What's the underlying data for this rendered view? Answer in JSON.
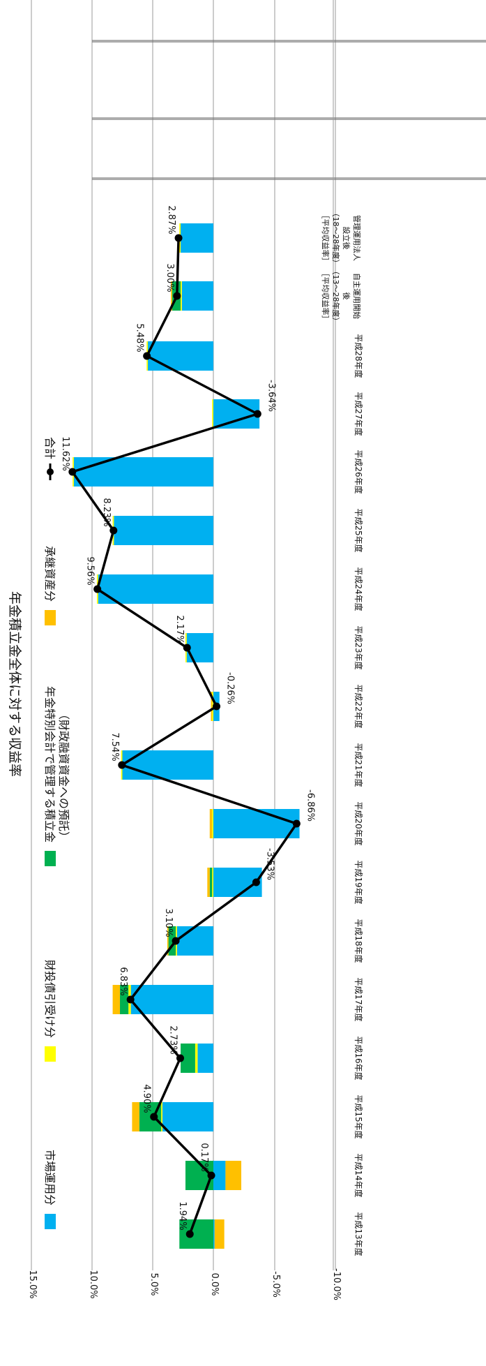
{
  "chart_data": {
    "type": "bar",
    "title": "年金積立金全体に対する収益率",
    "categories": [
      "平成13年度",
      "平成14年度",
      "平成15年度",
      "平成16年度",
      "平成17年度",
      "平成18年度",
      "平成19年度",
      "平成20年度",
      "平成21年度",
      "平成22年度",
      "平成23年度",
      "平成24年度",
      "平成25年度",
      "平成26年度",
      "平成27年度",
      "平成28年度",
      "自主運用開始後（13～28年度）［平均収益率］",
      "管理運用法人設立後（18～28年度）［平均収益率］"
    ],
    "ylim": [
      -10,
      15
    ],
    "yticks": [
      "15.0%",
      "10.0%",
      "5.0%",
      "0.0%",
      "-5.0%",
      "-10.0%"
    ],
    "legend": {
      "placement": "top"
    },
    "series": [
      {
        "name": "市場運用分",
        "color": "#00b0f0",
        "values": [
          -0.1,
          -1.0,
          4.2,
          1.3,
          6.8,
          3.0,
          -4.0,
          -7.1,
          7.5,
          -0.5,
          2.2,
          9.5,
          8.2,
          11.5,
          -3.8,
          5.4,
          2.6,
          2.7
        ]
      },
      {
        "name": "財投債引受け分",
        "color": "#ffff00",
        "values": [
          0.0,
          0.0,
          0.1,
          0.2,
          0.2,
          0.1,
          0.1,
          0.1,
          0.1,
          0.1,
          0.1,
          0.1,
          0.1,
          0.1,
          0.1,
          0.1,
          0.1,
          0.1
        ]
      },
      {
        "name": "年金特別会計で管理する積立金\n（財政融資資金への預託）",
        "color": "#00b050",
        "values": [
          2.8,
          2.3,
          1.8,
          1.2,
          0.7,
          0.6,
          0.2,
          0.0,
          0.0,
          0.0,
          0.0,
          0.0,
          0.0,
          0.0,
          0.0,
          0.0,
          0.7,
          0.0
        ]
      },
      {
        "name": "承継資産分",
        "color": "#ffc000",
        "values": [
          -0.8,
          -1.3,
          0.6,
          0.0,
          0.6,
          0.1,
          0.2,
          0.2,
          0.0,
          0.1,
          0.0,
          0.0,
          0.0,
          0.0,
          0.0,
          0.0,
          0.1,
          0.0
        ]
      },
      {
        "name": "合計",
        "color": "#000000",
        "type": "line",
        "values": [
          1.94,
          0.17,
          4.9,
          2.73,
          6.83,
          3.1,
          -3.53,
          -6.86,
          7.54,
          -0.26,
          2.17,
          9.56,
          8.23,
          11.62,
          -3.64,
          5.48,
          3.0,
          2.87
        ],
        "labels": [
          "1.94%",
          "0.17%",
          "4.90%",
          "2.73%",
          "6.83%",
          "3.10%",
          "-3.53%",
          "-6.86%",
          "7.54%",
          "-0.26%",
          "2.17%",
          "9.56%",
          "8.23%",
          "11.62%",
          "-3.64%",
          "5.48%",
          "3.00%",
          "2.87%"
        ]
      }
    ]
  }
}
